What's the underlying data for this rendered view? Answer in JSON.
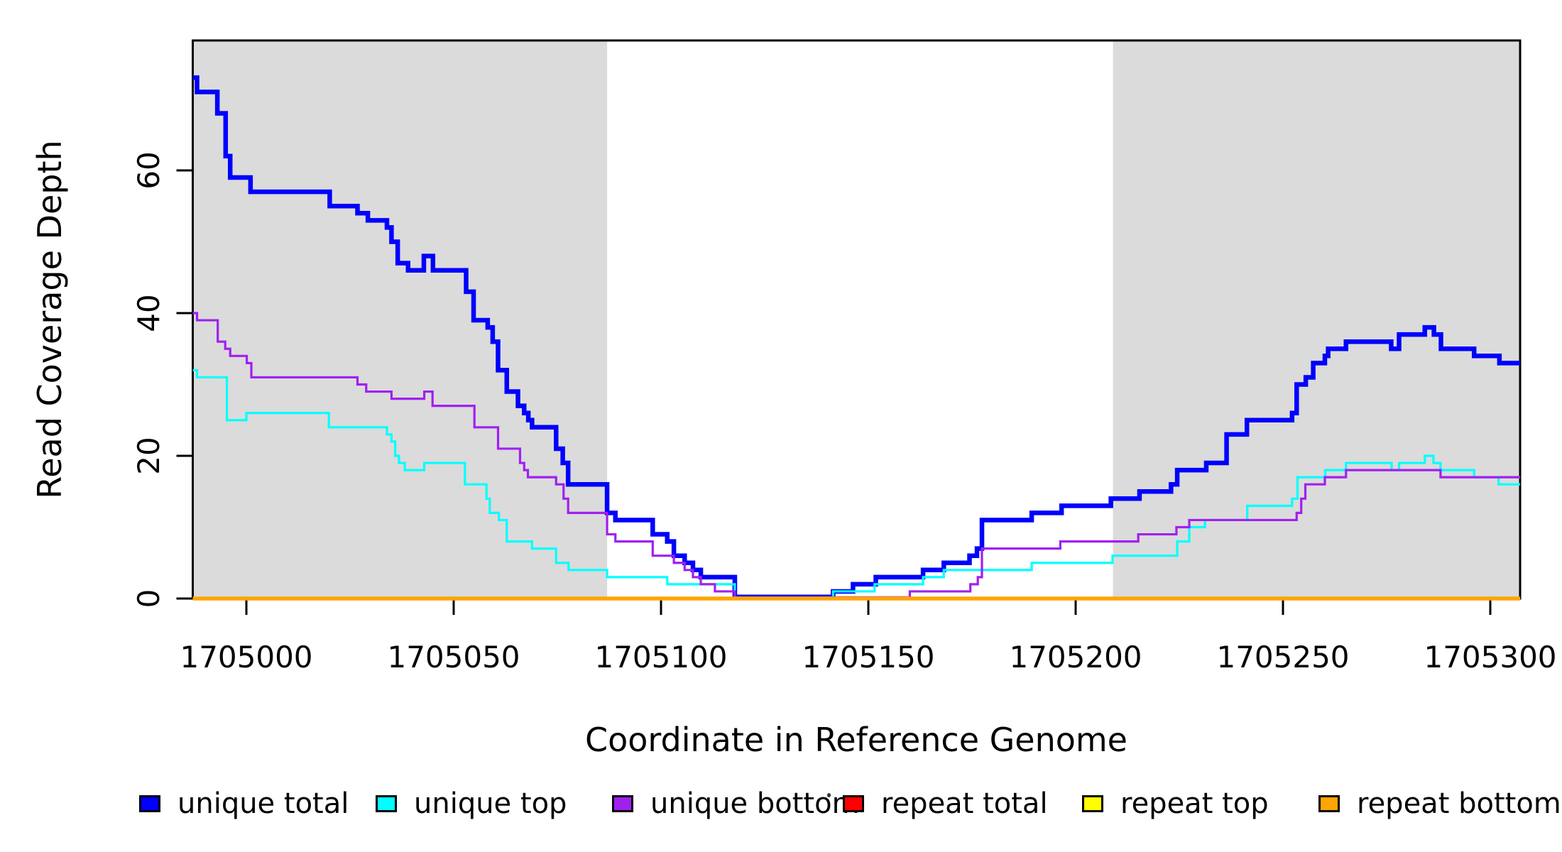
{
  "chart_data": {
    "type": "line",
    "step": true,
    "title": "",
    "xlabel": "Coordinate in Reference Genome",
    "ylabel": "Read Coverage Depth",
    "grid": false,
    "xlim": [
      1704987,
      1705307
    ],
    "ylim": [
      0,
      78
    ],
    "x_ticks": [
      {
        "value": 1705000,
        "label": "1705000"
      },
      {
        "value": 1705050,
        "label": "1705050"
      },
      {
        "value": 1705100,
        "label": "1705100"
      },
      {
        "value": 1705150,
        "label": "1705150"
      },
      {
        "value": 1705200,
        "label": "1705200"
      },
      {
        "value": 1705250,
        "label": "1705250"
      },
      {
        "value": 1705300,
        "label": "1705300"
      }
    ],
    "y_ticks": [
      {
        "value": 0,
        "label": "0"
      },
      {
        "value": 20,
        "label": "20"
      },
      {
        "value": 40,
        "label": "40"
      },
      {
        "value": 60,
        "label": "60"
      }
    ],
    "shaded_regions": [
      {
        "from": 1704987,
        "to": 1705087,
        "color": "#dbdbdb"
      },
      {
        "from": 1705209,
        "to": 1705307,
        "color": "#dbdbdb"
      }
    ],
    "series": [
      {
        "name": "unique total",
        "color": "#0000ff",
        "width": 6.5,
        "points": [
          [
            1704987.1,
            73
          ],
          [
            1704988.1,
            71
          ],
          [
            1704993.0,
            68
          ],
          [
            1704995.0,
            62
          ],
          [
            1704996.1,
            59
          ],
          [
            1705001.0,
            57
          ],
          [
            1705020.1,
            55
          ],
          [
            1705026.8,
            54
          ],
          [
            1705029.3,
            53
          ],
          [
            1705033.9,
            52
          ],
          [
            1705035.0,
            50
          ],
          [
            1705036.5,
            47
          ],
          [
            1705039.0,
            46
          ],
          [
            1705042.8,
            48
          ],
          [
            1705045.0,
            46
          ],
          [
            1705053.0,
            43
          ],
          [
            1705054.8,
            39
          ],
          [
            1705058.2,
            38
          ],
          [
            1705059.4,
            36
          ],
          [
            1705060.7,
            32
          ],
          [
            1705062.8,
            29
          ],
          [
            1705065.5,
            27
          ],
          [
            1705067.0,
            26
          ],
          [
            1705068.0,
            25
          ],
          [
            1705068.9,
            24
          ],
          [
            1705074.7,
            21
          ],
          [
            1705076.3,
            19
          ],
          [
            1705077.6,
            16
          ],
          [
            1705087.0,
            12
          ],
          [
            1705089.0,
            11
          ],
          [
            1705098.0,
            9
          ],
          [
            1705101.5,
            8
          ],
          [
            1705103.1,
            6
          ],
          [
            1705105.7,
            5
          ],
          [
            1705107.7,
            4
          ],
          [
            1705109.6,
            3
          ],
          [
            1705117.8,
            0
          ],
          [
            1705141.5,
            1
          ],
          [
            1705146.3,
            2
          ],
          [
            1705151.8,
            3
          ],
          [
            1705163.2,
            4
          ],
          [
            1705168.2,
            5
          ],
          [
            1705174.4,
            6
          ],
          [
            1705176.2,
            7
          ],
          [
            1705177.4,
            11
          ],
          [
            1705189.4,
            12
          ],
          [
            1705196.6,
            13
          ],
          [
            1705208.5,
            14
          ],
          [
            1705215.4,
            15
          ],
          [
            1705223.0,
            16
          ],
          [
            1705224.5,
            18
          ],
          [
            1705231.5,
            19
          ],
          [
            1705236.4,
            23
          ],
          [
            1705241.3,
            25
          ],
          [
            1705252.2,
            26
          ],
          [
            1705253.3,
            30
          ],
          [
            1705255.5,
            31
          ],
          [
            1705257.3,
            33
          ],
          [
            1705260.1,
            34
          ],
          [
            1705260.9,
            35
          ],
          [
            1705265.2,
            36
          ],
          [
            1705276.1,
            35
          ],
          [
            1705278.0,
            37
          ],
          [
            1705284.2,
            38
          ],
          [
            1705286.4,
            37
          ],
          [
            1705288.1,
            35
          ],
          [
            1705296.1,
            34
          ],
          [
            1705302.2,
            33
          ]
        ]
      },
      {
        "name": "unique top",
        "color": "#00ffff",
        "width": 3.2,
        "points": [
          [
            1704987.1,
            32
          ],
          [
            1704988.1,
            31
          ],
          [
            1704995.3,
            25
          ],
          [
            1705000.0,
            26
          ],
          [
            1705019.9,
            24
          ],
          [
            1705033.9,
            23
          ],
          [
            1705035.0,
            22
          ],
          [
            1705035.9,
            20
          ],
          [
            1705036.8,
            19
          ],
          [
            1705038.2,
            18
          ],
          [
            1705042.9,
            19
          ],
          [
            1705052.7,
            16
          ],
          [
            1705057.9,
            14
          ],
          [
            1705058.7,
            12
          ],
          [
            1705060.9,
            11
          ],
          [
            1705062.8,
            8
          ],
          [
            1705068.9,
            7
          ],
          [
            1705074.7,
            5
          ],
          [
            1705077.7,
            4
          ],
          [
            1705087.0,
            3
          ],
          [
            1705101.5,
            2
          ],
          [
            1705117.8,
            0
          ],
          [
            1705141.5,
            1
          ],
          [
            1705151.5,
            2
          ],
          [
            1705163.2,
            3
          ],
          [
            1705168.2,
            4
          ],
          [
            1705189.4,
            5
          ],
          [
            1705208.9,
            6
          ],
          [
            1705224.5,
            8
          ],
          [
            1705227.4,
            10
          ],
          [
            1705231.2,
            11
          ],
          [
            1705241.4,
            13
          ],
          [
            1705252.2,
            14
          ],
          [
            1705253.5,
            17
          ],
          [
            1705260.2,
            18
          ],
          [
            1705265.2,
            19
          ],
          [
            1705276.2,
            18
          ],
          [
            1705278.0,
            19
          ],
          [
            1705284.2,
            20
          ],
          [
            1705286.3,
            19
          ],
          [
            1705288.0,
            18
          ],
          [
            1705296.1,
            17
          ],
          [
            1705302.0,
            16
          ]
        ]
      },
      {
        "name": "unique bottom",
        "color": "#a020f0",
        "width": 3.2,
        "points": [
          [
            1704987.1,
            40
          ],
          [
            1704988.1,
            39
          ],
          [
            1704993.1,
            36
          ],
          [
            1704994.9,
            35
          ],
          [
            1704996.1,
            34
          ],
          [
            1705000.1,
            33
          ],
          [
            1705001.2,
            31
          ],
          [
            1705026.8,
            30
          ],
          [
            1705028.9,
            29
          ],
          [
            1705035.0,
            28
          ],
          [
            1705042.9,
            29
          ],
          [
            1705044.9,
            27
          ],
          [
            1705055.0,
            24
          ],
          [
            1705060.7,
            21
          ],
          [
            1705066.0,
            19
          ],
          [
            1705067.0,
            18
          ],
          [
            1705067.9,
            17
          ],
          [
            1705074.7,
            16
          ],
          [
            1705076.5,
            14
          ],
          [
            1705077.6,
            12
          ],
          [
            1705087.0,
            9
          ],
          [
            1705089.0,
            8
          ],
          [
            1705098.0,
            6
          ],
          [
            1705103.1,
            5
          ],
          [
            1705105.7,
            4
          ],
          [
            1705107.7,
            3
          ],
          [
            1705109.6,
            2
          ],
          [
            1705113.0,
            1
          ],
          [
            1705117.8,
            0
          ],
          [
            1705160.0,
            1
          ],
          [
            1705174.6,
            2
          ],
          [
            1705176.4,
            3
          ],
          [
            1705177.4,
            7
          ],
          [
            1705196.3,
            8
          ],
          [
            1705215.1,
            9
          ],
          [
            1705224.3,
            10
          ],
          [
            1705227.4,
            11
          ],
          [
            1705253.3,
            12
          ],
          [
            1705254.4,
            14
          ],
          [
            1705255.4,
            16
          ],
          [
            1705260.1,
            17
          ],
          [
            1705265.2,
            18
          ],
          [
            1705288.0,
            17
          ]
        ]
      },
      {
        "name": "repeat total",
        "color": "#ff0000",
        "width": 3.0,
        "points": [
          [
            1704987.1,
            0
          ]
        ]
      },
      {
        "name": "repeat top",
        "color": "#ffff00",
        "width": 3.0,
        "points": [
          [
            1704987.1,
            0
          ]
        ]
      },
      {
        "name": "repeat bottom",
        "color": "#ffa500",
        "width": 5.5,
        "points": [
          [
            1704987.1,
            0
          ]
        ]
      }
    ],
    "legend": {
      "position": "bottom",
      "items": [
        {
          "label": "unique total",
          "color": "#0000ff"
        },
        {
          "label": "unique top",
          "color": "#00ffff"
        },
        {
          "label": "unique bottom",
          "color": "#a020f0"
        },
        {
          "label": "repeat total",
          "color": "#ff0000"
        },
        {
          "label": "repeat top",
          "color": "#ffff00"
        },
        {
          "label": "repeat bottom",
          "color": "#ffa500"
        }
      ],
      "stray_dot": {
        "x": 1165,
        "y": 1117
      }
    }
  }
}
